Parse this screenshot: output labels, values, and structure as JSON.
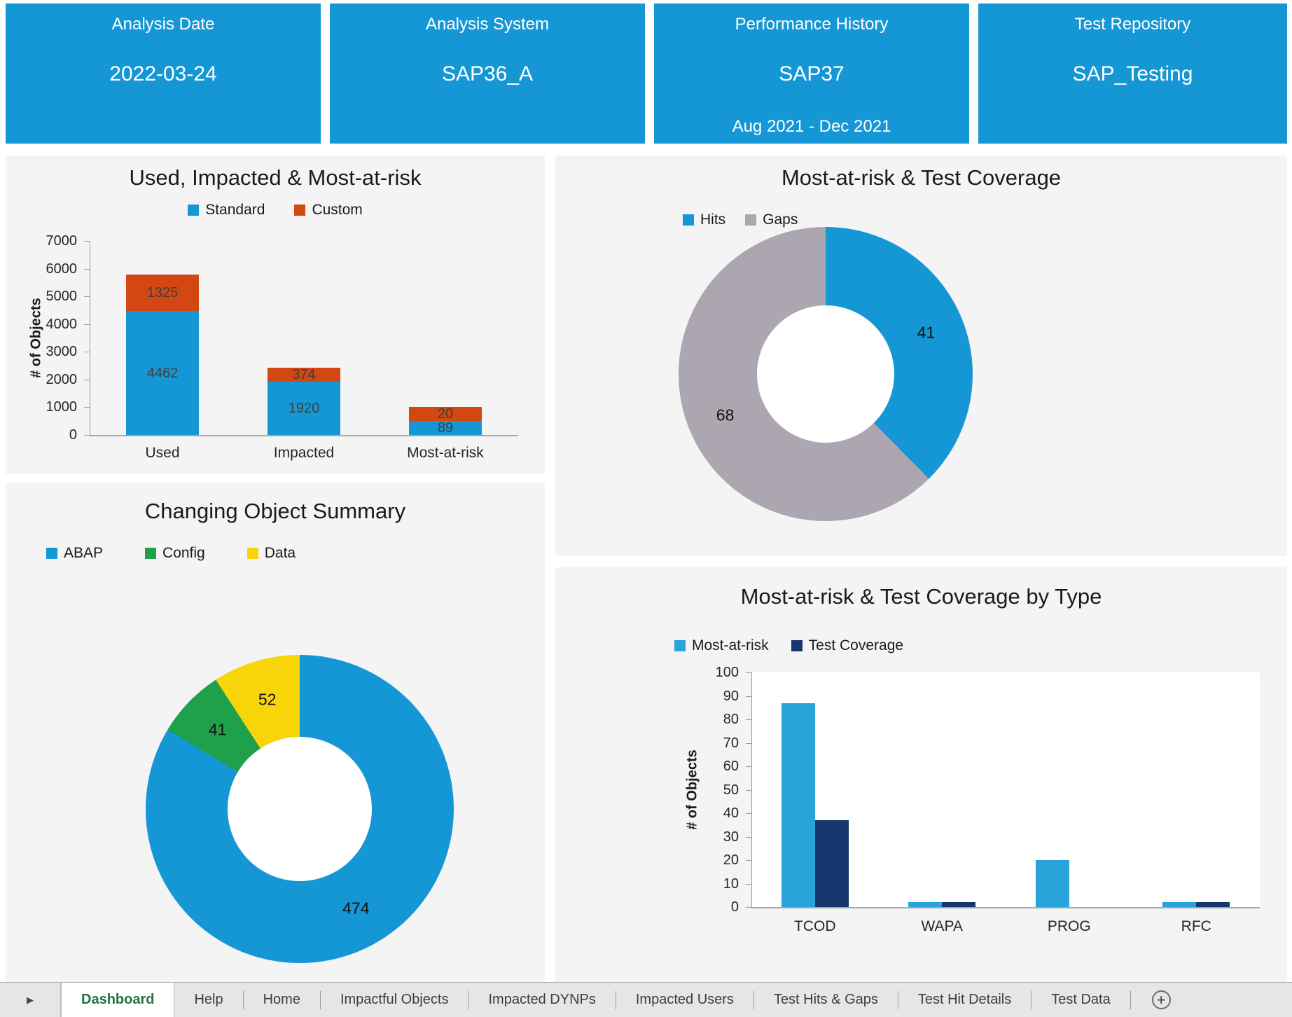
{
  "tiles": [
    {
      "label": "Analysis Date",
      "value": "2022-03-24",
      "sub": ""
    },
    {
      "label": "Analysis System",
      "value": "SAP36_A",
      "sub": ""
    },
    {
      "label": "Performance History",
      "value": "SAP37",
      "sub": "Aug 2021 - Dec 2021"
    },
    {
      "label": "Test Repository",
      "value": "SAP_Testing",
      "sub": ""
    }
  ],
  "chart_data": [
    {
      "type": "bar",
      "subtype": "stacked",
      "title": "Used, Impacted & Most-at-risk",
      "categories": [
        "Used",
        "Impacted",
        "Most-at-risk"
      ],
      "series": [
        {
          "name": "Standard",
          "color": "#1697D5",
          "values": [
            4462,
            1920,
            89
          ]
        },
        {
          "name": "Custom",
          "color": "#D34712",
          "values": [
            1325,
            374,
            20
          ]
        }
      ],
      "xlabel": "",
      "ylabel": "# of Objects",
      "ylim": [
        0,
        7000
      ],
      "ytick": 1000,
      "grid": false,
      "legend_position": "top-center"
    },
    {
      "type": "pie",
      "subtype": "donut",
      "title": "Most-at-risk & Test Coverage",
      "labels": [
        "Hits",
        "Gaps"
      ],
      "values": [
        41,
        68
      ],
      "colors": [
        "#1697D5",
        "#ACA6B0"
      ],
      "legend_position": "top-left"
    },
    {
      "type": "pie",
      "subtype": "donut",
      "title": "Changing Object Summary",
      "labels": [
        "ABAP",
        "Config",
        "Data"
      ],
      "values": [
        474,
        41,
        52
      ],
      "colors": [
        "#1697D5",
        "#1FA14C",
        "#F7D508"
      ],
      "legend_position": "top-left"
    },
    {
      "type": "bar",
      "subtype": "grouped",
      "title": "Most-at-risk & Test Coverage by Type",
      "categories": [
        "TCOD",
        "WAPA",
        "PROG",
        "RFC"
      ],
      "series": [
        {
          "name": "Most-at-risk",
          "color": "#28A4DB",
          "values": [
            87,
            2,
            20,
            2
          ]
        },
        {
          "name": "Test Coverage",
          "color": "#17366E",
          "values": [
            37,
            2,
            0,
            2
          ]
        }
      ],
      "xlabel": "",
      "ylabel": "# of Objects",
      "ylim": [
        0,
        100
      ],
      "ytick": 10,
      "grid": false,
      "legend_position": "top-left"
    }
  ],
  "tab_bar": {
    "nav_icon": "▶",
    "add_sheet_icon": "+",
    "tabs": [
      {
        "label": "Dashboard",
        "active": true
      },
      {
        "label": "Help",
        "active": false
      },
      {
        "label": "Home",
        "active": false
      },
      {
        "label": "Impactful Objects",
        "active": false
      },
      {
        "label": "Impacted DYNPs",
        "active": false
      },
      {
        "label": "Impacted Users",
        "active": false
      },
      {
        "label": "Test Hits & Gaps",
        "active": false
      },
      {
        "label": "Test Hit Details",
        "active": false
      },
      {
        "label": "Test Data",
        "active": false
      }
    ]
  },
  "colors": {
    "tile_blue": "#1697D5",
    "standard_blue": "#1697D5",
    "custom_orange": "#D34712",
    "gaps_gray": "#ACA6B0",
    "config_green": "#1FA14C",
    "data_yellow": "#F7D508",
    "most_at_risk_blue": "#28A4DB",
    "test_coverage_navy": "#17366E",
    "active_tab_green": "#217346",
    "panel_bg": "#F4F4F4"
  }
}
